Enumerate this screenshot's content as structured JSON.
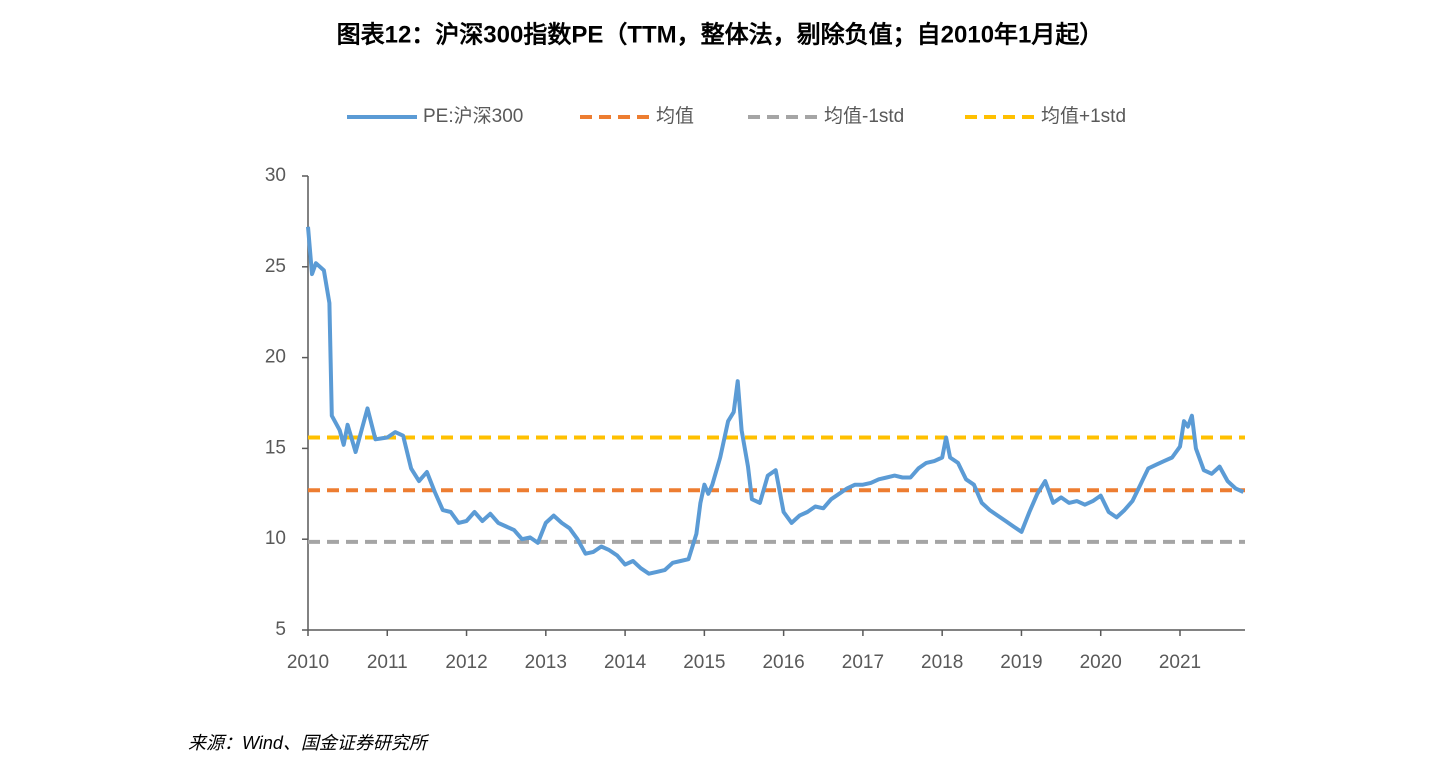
{
  "chart_data": {
    "type": "line",
    "title": "图表12：沪深300指数PE（TTM，整体法，剔除负值；自2010年1月起）",
    "source": "来源：Wind、国金证券研究所",
    "xlim": [
      2010,
      2021.82
    ],
    "xticks": [
      2010,
      2011,
      2012,
      2013,
      2014,
      2015,
      2016,
      2017,
      2018,
      2019,
      2020,
      2021
    ],
    "ylim": [
      5,
      30
    ],
    "yticks": [
      5,
      10,
      15,
      20,
      25,
      30
    ],
    "grid": false,
    "legend": "top",
    "series": [
      {
        "name": "PE:沪深300",
        "color": "#5b9bd5",
        "dashed": false,
        "x": [
          2010.0,
          2010.05,
          2010.1,
          2010.2,
          2010.27,
          2010.3,
          2010.4,
          2010.45,
          2010.5,
          2010.6,
          2010.75,
          2010.85,
          2011.0,
          2011.1,
          2011.2,
          2011.3,
          2011.4,
          2011.5,
          2011.6,
          2011.7,
          2011.8,
          2011.9,
          2012.0,
          2012.1,
          2012.2,
          2012.3,
          2012.4,
          2012.5,
          2012.6,
          2012.7,
          2012.8,
          2012.9,
          2013.0,
          2013.1,
          2013.2,
          2013.3,
          2013.4,
          2013.5,
          2013.6,
          2013.7,
          2013.8,
          2013.9,
          2014.0,
          2014.1,
          2014.2,
          2014.3,
          2014.4,
          2014.5,
          2014.6,
          2014.7,
          2014.8,
          2014.9,
          2014.95,
          2015.0,
          2015.05,
          2015.1,
          2015.2,
          2015.3,
          2015.37,
          2015.42,
          2015.47,
          2015.55,
          2015.6,
          2015.7,
          2015.8,
          2015.9,
          2016.0,
          2016.1,
          2016.2,
          2016.3,
          2016.4,
          2016.5,
          2016.6,
          2016.7,
          2016.8,
          2016.9,
          2017.0,
          2017.1,
          2017.2,
          2017.3,
          2017.4,
          2017.5,
          2017.6,
          2017.7,
          2017.8,
          2017.9,
          2018.0,
          2018.05,
          2018.1,
          2018.2,
          2018.3,
          2018.4,
          2018.5,
          2018.6,
          2018.7,
          2018.8,
          2018.9,
          2019.0,
          2019.1,
          2019.2,
          2019.3,
          2019.4,
          2019.5,
          2019.6,
          2019.7,
          2019.8,
          2019.9,
          2020.0,
          2020.1,
          2020.2,
          2020.3,
          2020.4,
          2020.5,
          2020.6,
          2020.7,
          2020.8,
          2020.9,
          2021.0,
          2021.05,
          2021.1,
          2021.15,
          2021.2,
          2021.3,
          2021.4,
          2021.5,
          2021.6,
          2021.7,
          2021.8
        ],
        "values": [
          27.2,
          24.6,
          25.2,
          24.8,
          23.0,
          16.8,
          16.0,
          15.2,
          16.3,
          14.8,
          17.2,
          15.5,
          15.6,
          15.9,
          15.7,
          13.9,
          13.2,
          13.7,
          12.6,
          11.6,
          11.5,
          10.9,
          11.0,
          11.5,
          11.0,
          11.4,
          10.9,
          10.7,
          10.5,
          10.0,
          10.1,
          9.8,
          10.9,
          11.3,
          10.9,
          10.6,
          10.0,
          9.2,
          9.3,
          9.6,
          9.4,
          9.1,
          8.6,
          8.8,
          8.4,
          8.1,
          8.2,
          8.3,
          8.7,
          8.8,
          8.9,
          10.3,
          12.0,
          13.0,
          12.5,
          13.0,
          14.5,
          16.5,
          17.0,
          18.7,
          16.0,
          14.0,
          12.2,
          12.0,
          13.5,
          13.8,
          11.5,
          10.9,
          11.3,
          11.5,
          11.8,
          11.7,
          12.2,
          12.5,
          12.8,
          13.0,
          13.0,
          13.1,
          13.3,
          13.4,
          13.5,
          13.4,
          13.4,
          13.9,
          14.2,
          14.3,
          14.5,
          15.6,
          14.5,
          14.2,
          13.3,
          13.0,
          12.0,
          11.6,
          11.3,
          11.0,
          10.7,
          10.4,
          11.5,
          12.5,
          13.2,
          12.0,
          12.3,
          12.0,
          12.1,
          11.9,
          12.1,
          12.4,
          11.5,
          11.2,
          11.6,
          12.1,
          13.0,
          13.9,
          14.1,
          14.3,
          14.5,
          15.1,
          16.5,
          16.2,
          16.8,
          15.0,
          13.8,
          13.6,
          14.0,
          13.2,
          12.8,
          12.6
        ]
      },
      {
        "name": "均值",
        "color": "#ed7d31",
        "dashed": true,
        "x": [
          2010,
          2021.82
        ],
        "values": [
          12.7,
          12.7
        ]
      },
      {
        "name": "均值-1std",
        "color": "#a5a5a5",
        "dashed": true,
        "x": [
          2010,
          2021.82
        ],
        "values": [
          9.85,
          9.85
        ]
      },
      {
        "name": "均值+1std",
        "color": "#ffc000",
        "dashed": true,
        "x": [
          2010,
          2021.82
        ],
        "values": [
          15.6,
          15.6
        ]
      }
    ]
  }
}
